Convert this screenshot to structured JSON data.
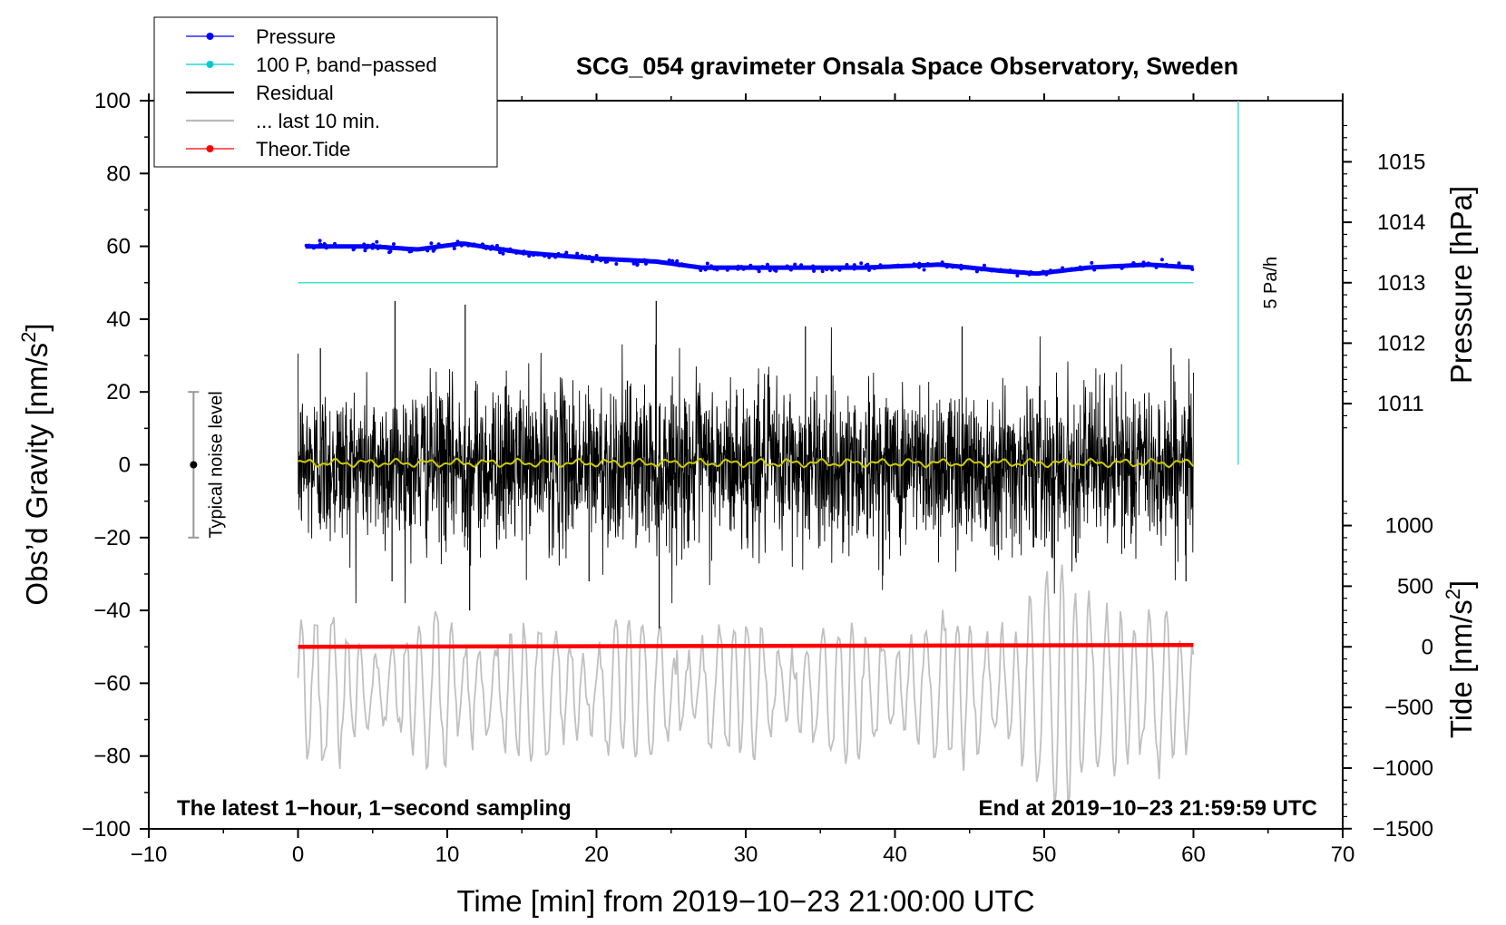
{
  "chart_data": {
    "type": "line",
    "title": "SCG_054 gravimeter Onsala Space Observatory, Sweden",
    "xlabel": "Time [min] from 2019−10−23 21:00:00 UTC",
    "ylabel_left": "Obs’d Gravity [nm/s",
    "ylabel_left_sup": "2",
    "ylabel_left_end": "]",
    "ylabel_right_pressure": "Pressure [hPa]",
    "ylabel_right_tide": "Tide [nm/s",
    "ylabel_right_tide_sup": "2",
    "ylabel_right_tide_end": "]",
    "xlim": [
      -10,
      70
    ],
    "ylim": [
      -100,
      100
    ],
    "x_ticks": [
      {
        "v": -10,
        "label": "−10"
      },
      {
        "v": 0,
        "label": "0"
      },
      {
        "v": 10,
        "label": "10"
      },
      {
        "v": 20,
        "label": "20"
      },
      {
        "v": 30,
        "label": "30"
      },
      {
        "v": 40,
        "label": "40"
      },
      {
        "v": 50,
        "label": "50"
      },
      {
        "v": 60,
        "label": "60"
      },
      {
        "v": 70,
        "label": "70"
      }
    ],
    "y_ticks": [
      {
        "v": 100,
        "label": "100"
      },
      {
        "v": 80,
        "label": "80"
      },
      {
        "v": 60,
        "label": "60"
      },
      {
        "v": 40,
        "label": "40"
      },
      {
        "v": 20,
        "label": "20"
      },
      {
        "v": 0,
        "label": "0"
      },
      {
        "v": -20,
        "label": "−20"
      },
      {
        "v": -40,
        "label": "−40"
      },
      {
        "v": -60,
        "label": "−60"
      },
      {
        "v": -80,
        "label": "−80"
      },
      {
        "v": -100,
        "label": "−100"
      }
    ],
    "pressure_axis": {
      "ticks": [
        {
          "v": 1015,
          "label": "1015"
        },
        {
          "v": 1014,
          "label": "1014"
        },
        {
          "v": 1013,
          "label": "1013"
        },
        {
          "v": 1012,
          "label": "1012"
        },
        {
          "v": 1011,
          "label": "1011"
        }
      ],
      "ref_value": 1013,
      "ref_gravity": 50,
      "gravity_per_hPa": 16.6
    },
    "tide_axis": {
      "ticks": [
        {
          "v": 1000,
          "label": "1000"
        },
        {
          "v": 500,
          "label": "500"
        },
        {
          "v": 0,
          "label": "0"
        },
        {
          "v": -500,
          "label": "−500"
        },
        {
          "v": -1000,
          "label": "−1000"
        },
        {
          "v": -1500,
          "label": "−1500"
        }
      ],
      "ref_value": 0,
      "ref_gravity": -50,
      "gravity_per_unit": 0.0333
    },
    "legend": [
      {
        "label": "Pressure",
        "color": "#0000ff",
        "marker": true
      },
      {
        "label": "100 P, band−passed",
        "color": "#00cccc",
        "marker": true
      },
      {
        "label": "Residual",
        "color": "#000000",
        "marker": false
      },
      {
        "label": "... last 10 min.",
        "color": "#bbbbbb",
        "marker": false
      },
      {
        "label": "Theor.Tide",
        "color": "#ff0000",
        "marker": true
      }
    ],
    "series": [
      {
        "name": "Pressure",
        "color": "#0000ff",
        "units": "hPa",
        "x": [
          0.5,
          5,
          8,
          11,
          15,
          20,
          24,
          27,
          32,
          38,
          43,
          47,
          49.5,
          53,
          57,
          60
        ],
        "values": [
          1013.6,
          1013.6,
          1013.55,
          1013.65,
          1013.5,
          1013.4,
          1013.35,
          1013.25,
          1013.25,
          1013.25,
          1013.3,
          1013.2,
          1013.15,
          1013.25,
          1013.3,
          1013.25
        ]
      },
      {
        "name": "100 P, band-passed",
        "color": "#40e0d0",
        "units": "nm/s2",
        "x": [
          0,
          60
        ],
        "values": [
          50,
          50
        ]
      },
      {
        "name": "Residual",
        "color": "#000000",
        "units": "nm/s2",
        "x_range": [
          0,
          60
        ],
        "noise_amplitude": 20,
        "spikes": [
          {
            "x": 6.5,
            "v": 45
          },
          {
            "x": 11.2,
            "v": 44
          },
          {
            "x": 11.5,
            "v": -40
          },
          {
            "x": 24,
            "v": 45
          },
          {
            "x": 24.2,
            "v": -45
          },
          {
            "x": 1.5,
            "v": 32
          },
          {
            "x": 58.5,
            "v": 32
          },
          {
            "x": 59.5,
            "v": -32
          },
          {
            "x": 6.3,
            "v": -32
          },
          {
            "x": 19.5,
            "v": -32
          },
          {
            "x": 34,
            "v": 38
          },
          {
            "x": 44.5,
            "v": 38
          }
        ]
      },
      {
        "name": "Residual (smoothed)",
        "color": "#cccc00",
        "units": "nm/s2",
        "x_range": [
          0,
          60
        ],
        "mean": 0.5,
        "amplitude": 1.2
      },
      {
        "name": "... last 10 min.",
        "color": "#c0c0c0",
        "units": "nm/s2",
        "x_range": [
          0,
          60
        ],
        "center": -62,
        "amplitude": 20
      },
      {
        "name": "Theor.Tide",
        "color": "#ff0000",
        "units": "nm/s2",
        "x": [
          0,
          60
        ],
        "values": [
          -50,
          -49.5
        ]
      }
    ],
    "noise_bar": {
      "label": "Typical noise level",
      "x": -7,
      "low": -20,
      "high": 20,
      "center": 0
    },
    "rate_bar": {
      "label": "5 Pa/h",
      "x": 63,
      "low": 0,
      "high": 100
    },
    "notes": {
      "left": "The latest 1−hour, 1−second sampling",
      "right": "End at 2019−10−23 21:59:59 UTC"
    }
  }
}
